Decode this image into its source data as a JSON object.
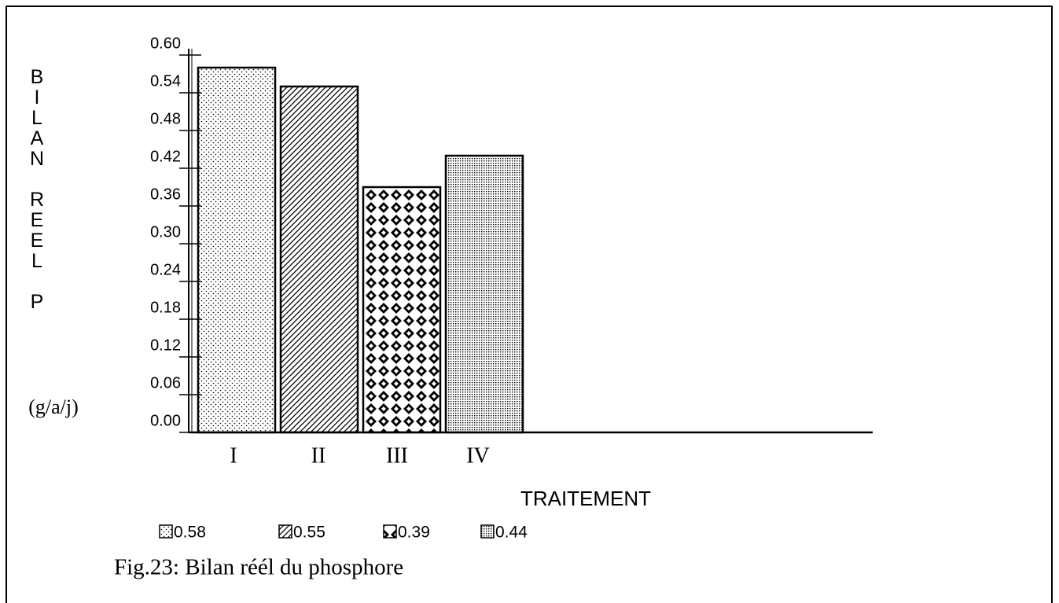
{
  "chart_data": {
    "type": "bar",
    "title": "Fig.23: Bilan réél du phosphore",
    "y_label": "BILAN REEL P",
    "y_unit": "(g/a/j)",
    "x_label": "TRAITEMENT",
    "categories": [
      "I",
      "II",
      "III",
      "IV"
    ],
    "values": [
      0.58,
      0.55,
      0.39,
      0.44
    ],
    "color": "#000000",
    "ylim": [
      0,
      0.6
    ],
    "yticks": [
      {
        "value": 0,
        "label": "0.00"
      },
      0.06,
      0.12,
      0.18,
      0.24,
      {
        "value": 0.3,
        "label": "0.30"
      },
      0.36,
      0.42,
      0.48,
      0.54,
      {
        "value": 0.6,
        "label": "0.60"
      }
    ],
    "legend": true
  }
}
